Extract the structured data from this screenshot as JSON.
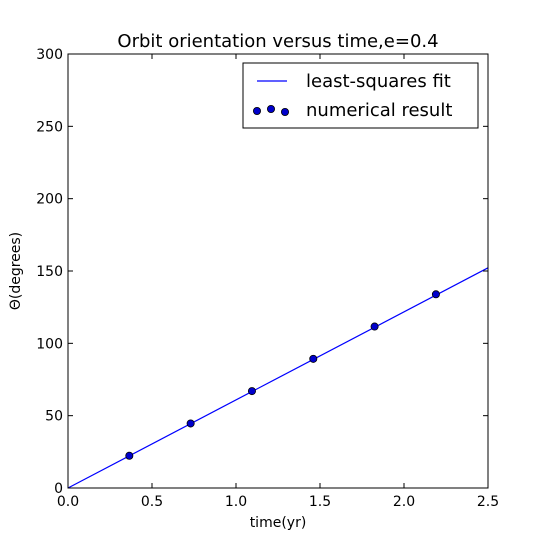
{
  "chart_data": {
    "type": "line",
    "title": "Orbit orientation versus time,e=0.4",
    "xlabel": "time(yr)",
    "ylabel": "Θ(degrees)",
    "xlim": [
      0.0,
      2.5
    ],
    "ylim": [
      0,
      300
    ],
    "xticks": [
      "0.0",
      "0.5",
      "1.0",
      "1.5",
      "2.0",
      "2.5"
    ],
    "yticks": [
      "0",
      "50",
      "100",
      "150",
      "200",
      "250",
      "300"
    ],
    "grid": false,
    "legend_position": "top-right",
    "series": [
      {
        "name": "least-squares fit",
        "kind": "line",
        "color": "#0000ff",
        "x": [
          0.0,
          2.5
        ],
        "y": [
          0.0,
          152.2
        ]
      },
      {
        "name": "numerical result",
        "kind": "scatter",
        "color": "#0000cc",
        "x": [
          0.365,
          0.73,
          1.095,
          1.46,
          1.825,
          2.19
        ],
        "y": [
          22.3,
          44.6,
          67.0,
          89.3,
          111.6,
          133.9
        ]
      }
    ]
  }
}
